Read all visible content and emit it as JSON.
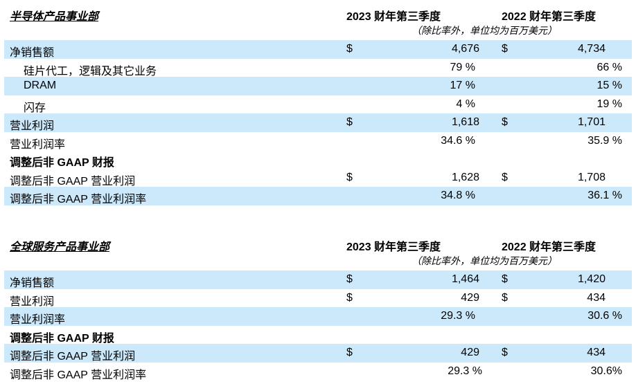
{
  "sections": [
    {
      "title": "半导体产品事业部",
      "col1": "2023 财年第三季度",
      "col2": "2022 财年第三季度",
      "note": "（除比率外，单位均为百万美元）",
      "rows": [
        {
          "label": "净销售额",
          "d1": "$",
          "v1": "4,676",
          "d2": "$",
          "v2": "4,734"
        },
        {
          "label": "硅片代工，逻辑及其它业务",
          "p1": "79 %",
          "p2": "66 %"
        },
        {
          "label": "DRAM",
          "p1": "17 %",
          "p2": "15 %"
        },
        {
          "label": "闪存",
          "p1": "4 %",
          "p2": "19 %"
        },
        {
          "label": "营业利润",
          "d1": "$",
          "v1": "1,618",
          "d2": "$",
          "v2": "1,701"
        },
        {
          "label": "营业利润率",
          "p1": "34.6 %",
          "p2": "35.9 %"
        },
        {
          "label": "调整后非 GAAP 财报"
        },
        {
          "label": "调整后非 GAAP 营业利润",
          "d1": "$",
          "v1": "1,628",
          "d2": "$",
          "v2": "1,708"
        },
        {
          "label": "调整后非 GAAP 营业利润率",
          "p1": "34.8 %",
          "p2": "36.1 %"
        }
      ]
    },
    {
      "title": "全球服务产品事业部",
      "col1": "2023 财年第三季度",
      "col2": "2022 财年第三季度",
      "note": "（除比率外，单位均为百万美元）",
      "rows": [
        {
          "label": "净销售额",
          "d1": "$",
          "v1": "1,464",
          "d2": "$",
          "v2": "1,420"
        },
        {
          "label": "营业利润",
          "d1": "$",
          "v1": "429",
          "d2": "$",
          "v2": "434"
        },
        {
          "label": "营业利润率",
          "p1": "29.3 %",
          "p2": "30.6 %"
        },
        {
          "label": "调整后非 GAAP 财报"
        },
        {
          "label": "调整后非 GAAP 营业利润",
          "d1": "$",
          "v1": "429",
          "d2": "$",
          "v2": "434"
        },
        {
          "label": "调整后非 GAAP 营业利润率",
          "p1": "29.3  %",
          "p2": "30.6%"
        }
      ]
    }
  ]
}
